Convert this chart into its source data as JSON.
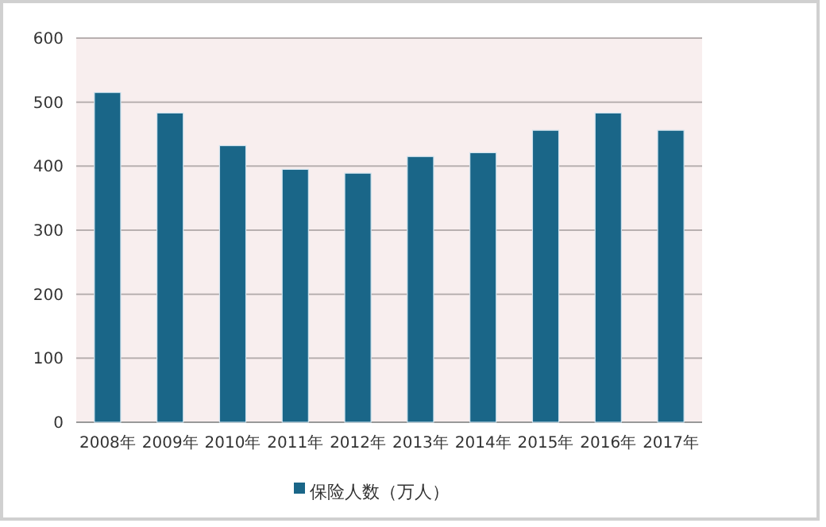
{
  "chart_data": {
    "type": "bar",
    "categories": [
      "2008年",
      "2009年",
      "2010年",
      "2011年",
      "2012年",
      "2013年",
      "2014年",
      "2015年",
      "2016年",
      "2017年"
    ],
    "series": [
      {
        "name": "保险人数（万人）",
        "color": "#1a6688",
        "values": [
          515,
          483,
          432,
          395,
          389,
          415,
          421,
          456,
          483,
          456
        ]
      }
    ],
    "ylim": [
      0,
      600
    ],
    "yticks": [
      0,
      100,
      200,
      300,
      400,
      500,
      600
    ],
    "grid": "y",
    "legend": "bottom"
  }
}
